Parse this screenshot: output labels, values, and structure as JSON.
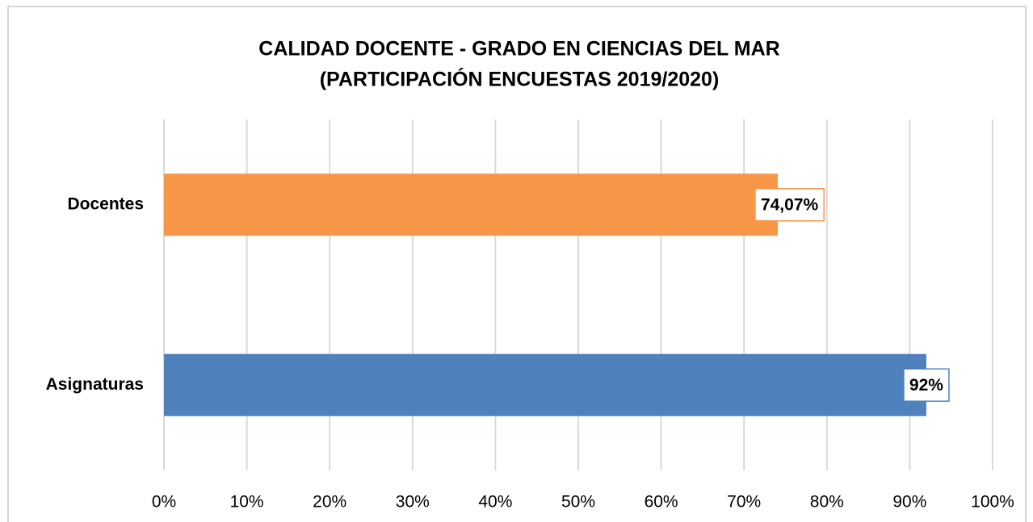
{
  "chart_data": {
    "type": "hbar",
    "title": [
      "CALIDAD DOCENTE - GRADO EN CIENCIAS DEL MAR",
      "(PARTICIPACIÓN ENCUESTAS 2019/2020)"
    ],
    "categories": [
      "Docentes",
      "Asignaturas"
    ],
    "values": [
      74.07,
      92
    ],
    "value_labels": [
      "74,07%",
      "92%"
    ],
    "colors": [
      "#f79646",
      "#4f81bd"
    ],
    "xlim": [
      0,
      100
    ],
    "xticks": [
      {
        "value": 0,
        "label": "0%"
      },
      {
        "value": 10,
        "label": "10%"
      },
      {
        "value": 20,
        "label": "20%"
      },
      {
        "value": 30,
        "label": "30%"
      },
      {
        "value": 40,
        "label": "40%"
      },
      {
        "value": 50,
        "label": "50%"
      },
      {
        "value": 60,
        "label": "60%"
      },
      {
        "value": 70,
        "label": "70%"
      },
      {
        "value": 80,
        "label": "80%"
      },
      {
        "value": 90,
        "label": "90%"
      },
      {
        "value": 100,
        "label": "100%"
      }
    ],
    "grid": true
  }
}
